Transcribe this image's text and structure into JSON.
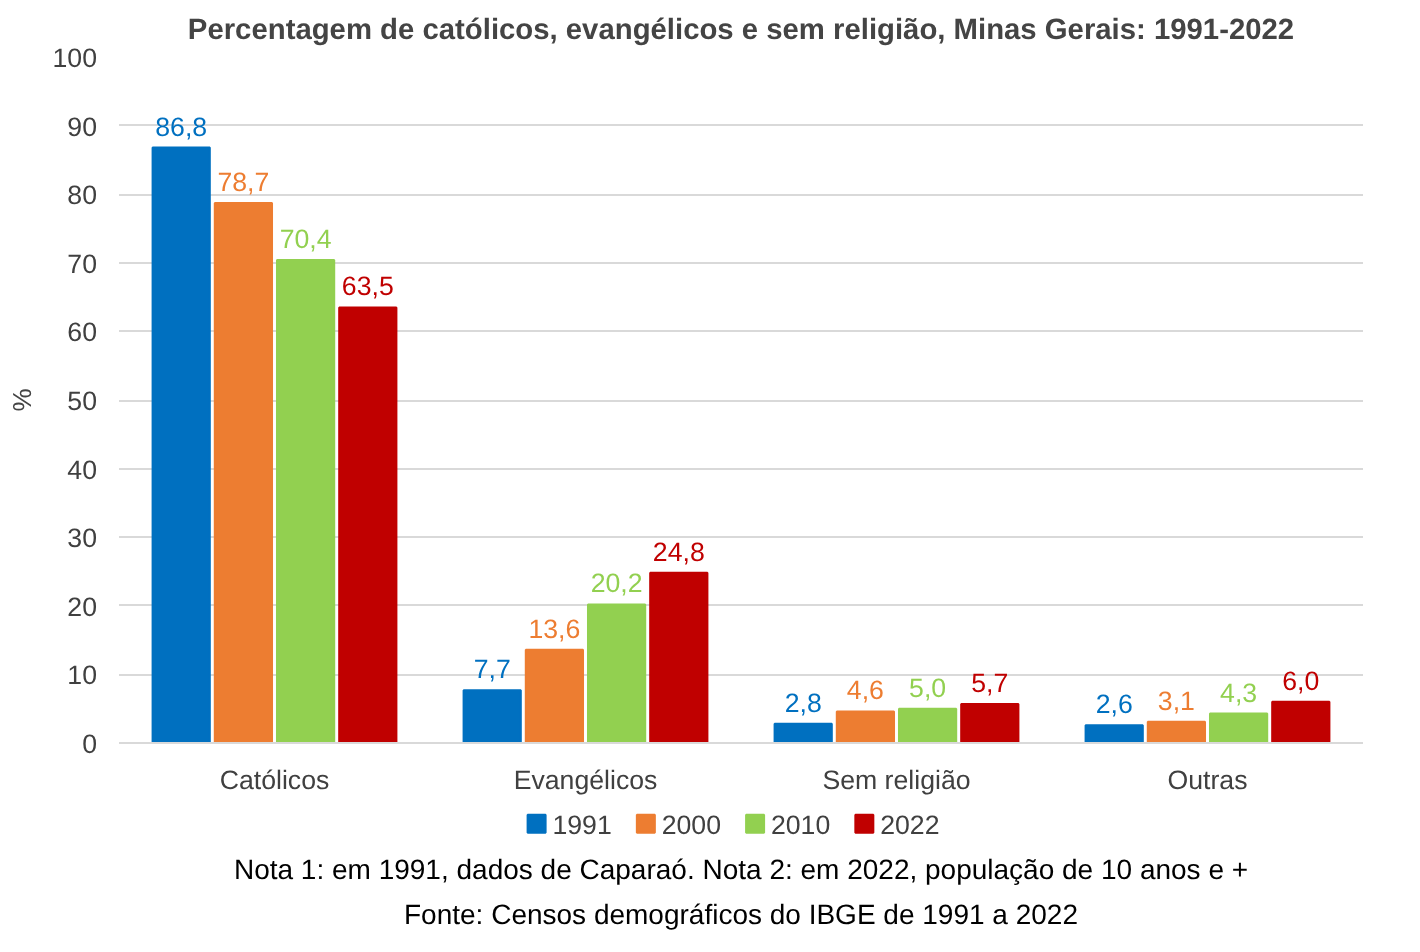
{
  "chart_data": {
    "type": "bar",
    "title": "Percentagem de católicos, evangélicos e sem religião, Minas Gerais: 1991-2022",
    "ylabel": "%",
    "categories": [
      "Católicos",
      "Evangélicos",
      "Sem religião",
      "Outras"
    ],
    "series": [
      {
        "name": "1991",
        "color": "#0070c0",
        "values": [
          86.8,
          7.7,
          2.8,
          2.6
        ],
        "value_labels": [
          "86,8",
          "7,7",
          "2,8",
          "2,6"
        ]
      },
      {
        "name": "2000",
        "color": "#ed7d31",
        "values": [
          78.7,
          13.6,
          4.6,
          3.1
        ],
        "value_labels": [
          "78,7",
          "13,6",
          "4,6",
          "3,1"
        ]
      },
      {
        "name": "2010",
        "color": "#92d050",
        "values": [
          70.4,
          20.2,
          5.0,
          4.3
        ],
        "value_labels": [
          "70,4",
          "20,2",
          "5,0",
          "4,3"
        ]
      },
      {
        "name": "2022",
        "color": "#c00000",
        "values": [
          63.5,
          24.8,
          5.7,
          6.0
        ],
        "value_labels": [
          "63,5",
          "24,8",
          "5,7",
          "6,0"
        ]
      }
    ],
    "ylim": [
      0,
      100
    ],
    "yticks": [
      0,
      10,
      20,
      30,
      40,
      50,
      60,
      70,
      80,
      90,
      100
    ],
    "grid": "y",
    "legend": "bottom",
    "annotations": [
      "Nota 1: em 1991, dados de Caparaó. Nota 2: em 2022, população de 10 anos e +",
      "Fonte: Censos demográficos do IBGE de 1991 a 2022"
    ]
  }
}
